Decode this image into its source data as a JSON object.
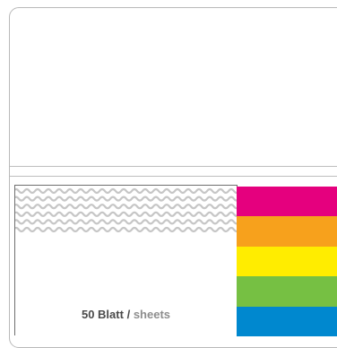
{
  "pad": {
    "count_label": "50 Blatt",
    "separator": "/",
    "unit_label": "sheets"
  },
  "pattern": {
    "name": "wave-pattern",
    "color": "#c6c6c6",
    "rows": 6
  },
  "strips": [
    {
      "name": "magenta",
      "color": "#e5007e"
    },
    {
      "name": "orange",
      "color": "#f7a11c"
    },
    {
      "name": "yellow",
      "color": "#ffed00"
    },
    {
      "name": "green",
      "color": "#76c043"
    },
    {
      "name": "blue",
      "color": "#0088cf"
    }
  ],
  "colors": {
    "outline": "#b9b9b9",
    "pad_border": "#6f6f6f",
    "text_dark": "#4a4a4a",
    "text_light": "#8d8d8d"
  }
}
